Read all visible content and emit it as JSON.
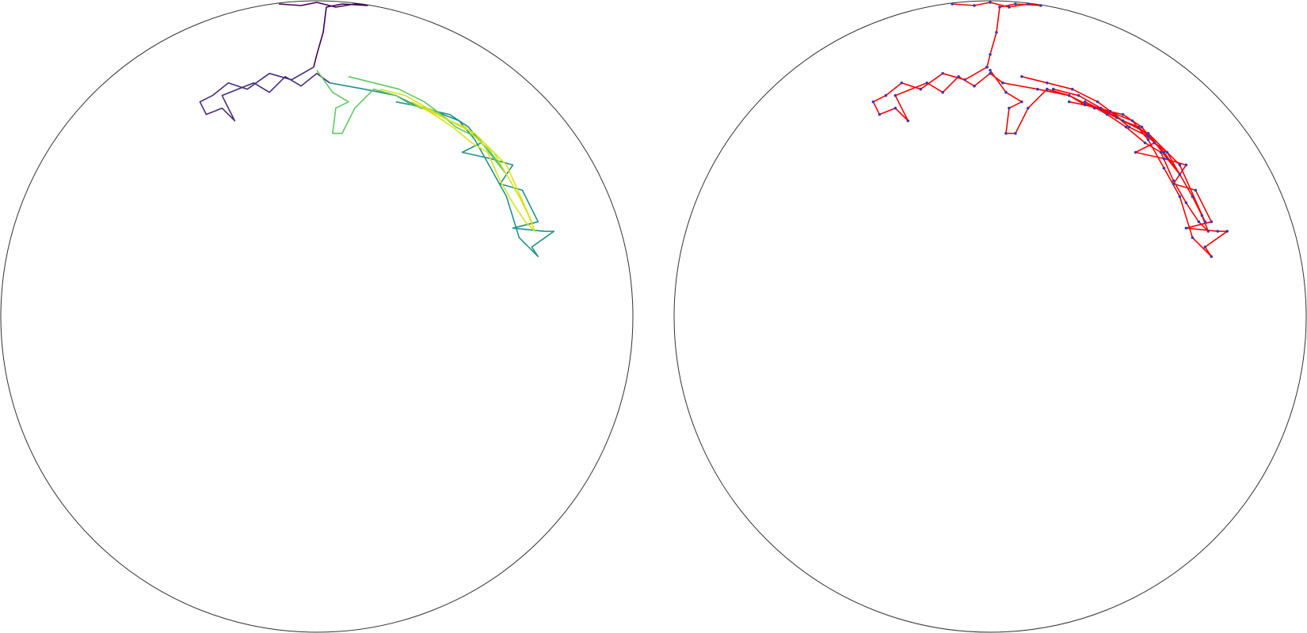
{
  "chart_data": [
    {
      "type": "line",
      "xlim": [
        -1,
        1
      ],
      "ylim": [
        -1,
        1
      ],
      "markers": false,
      "series": [
        {
          "color": "#440154",
          "x": [
            -0.12,
            -0.05,
            0.0,
            0.06,
            0.12,
            0.16,
            0.08,
            0.03,
            0.02,
            0.0,
            -0.01
          ],
          "y": [
            0.99,
            0.985,
            0.995,
            0.98,
            0.99,
            0.985,
            0.99,
            0.98,
            0.9,
            0.83,
            0.79
          ]
        },
        {
          "color": "#472d7b",
          "x": [
            -0.01,
            -0.08,
            -0.15,
            -0.22,
            -0.28,
            -0.33,
            -0.37,
            -0.35,
            -0.3,
            -0.26,
            -0.3,
            -0.2,
            -0.15,
            -0.1,
            -0.05,
            0.0,
            0.04
          ],
          "y": [
            0.79,
            0.75,
            0.77,
            0.72,
            0.74,
            0.7,
            0.68,
            0.64,
            0.66,
            0.62,
            0.7,
            0.74,
            0.71,
            0.76,
            0.73,
            0.77,
            0.74
          ]
        },
        {
          "color": "#21918c",
          "x": [
            0.04,
            0.15,
            0.25,
            0.33,
            0.42,
            0.48,
            0.52,
            0.46,
            0.55,
            0.62,
            0.58,
            0.65,
            0.7,
            0.62,
            0.72,
            0.75,
            0.68,
            0.7,
            0.64,
            0.6,
            0.55,
            0.5,
            0.45,
            0.35,
            0.25
          ],
          "y": [
            0.74,
            0.72,
            0.7,
            0.66,
            0.64,
            0.6,
            0.55,
            0.52,
            0.5,
            0.48,
            0.42,
            0.4,
            0.3,
            0.28,
            0.27,
            0.27,
            0.22,
            0.19,
            0.25,
            0.38,
            0.47,
            0.56,
            0.62,
            0.66,
            0.68
          ]
        },
        {
          "color": "#5ec962",
          "x": [
            0.0,
            0.05,
            0.1,
            0.06,
            0.05,
            0.08,
            0.12,
            0.18,
            0.25,
            0.3,
            0.38,
            0.44,
            0.5,
            0.55,
            0.6,
            0.56,
            0.5,
            0.42,
            0.34,
            0.26,
            0.18,
            0.1
          ],
          "y": [
            0.78,
            0.71,
            0.68,
            0.66,
            0.58,
            0.58,
            0.66,
            0.72,
            0.7,
            0.67,
            0.65,
            0.6,
            0.57,
            0.52,
            0.45,
            0.5,
            0.58,
            0.62,
            0.68,
            0.72,
            0.74,
            0.76
          ]
        },
        {
          "color": "#d8e219",
          "x": [
            0.2,
            0.28,
            0.35,
            0.42,
            0.47,
            0.52,
            0.56,
            0.6,
            0.64,
            0.67,
            0.69,
            0.66,
            0.62,
            0.58,
            0.54,
            0.49,
            0.43,
            0.37,
            0.3,
            0.4,
            0.5,
            0.6,
            0.68
          ],
          "y": [
            0.72,
            0.7,
            0.66,
            0.62,
            0.6,
            0.55,
            0.52,
            0.45,
            0.38,
            0.32,
            0.27,
            0.3,
            0.36,
            0.43,
            0.52,
            0.55,
            0.6,
            0.64,
            0.68,
            0.63,
            0.58,
            0.48,
            0.3
          ]
        }
      ]
    },
    {
      "type": "line",
      "xlim": [
        -1,
        1
      ],
      "ylim": [
        -1,
        1
      ],
      "markers": true,
      "marker_color": "#3a3ab0",
      "series": [
        {
          "color": "#ff0000",
          "x": [
            -0.12,
            -0.05,
            0.0,
            0.06,
            0.12,
            0.16,
            0.08,
            0.03,
            0.02,
            0.0,
            -0.01
          ],
          "y": [
            0.99,
            0.985,
            0.995,
            0.98,
            0.99,
            0.985,
            0.99,
            0.98,
            0.9,
            0.83,
            0.79
          ]
        },
        {
          "color": "#ff0000",
          "x": [
            -0.01,
            -0.08,
            -0.15,
            -0.22,
            -0.28,
            -0.33,
            -0.37,
            -0.35,
            -0.3,
            -0.26,
            -0.3,
            -0.2,
            -0.15,
            -0.1,
            -0.05,
            0.0,
            0.04
          ],
          "y": [
            0.79,
            0.75,
            0.77,
            0.72,
            0.74,
            0.7,
            0.68,
            0.64,
            0.66,
            0.62,
            0.7,
            0.74,
            0.71,
            0.76,
            0.73,
            0.77,
            0.74
          ]
        },
        {
          "color": "#ff0000",
          "x": [
            0.04,
            0.15,
            0.25,
            0.33,
            0.42,
            0.48,
            0.52,
            0.46,
            0.55,
            0.62,
            0.58,
            0.65,
            0.7,
            0.62,
            0.72,
            0.75,
            0.68,
            0.7,
            0.64,
            0.6,
            0.55,
            0.5,
            0.45,
            0.35,
            0.25
          ],
          "y": [
            0.74,
            0.72,
            0.7,
            0.66,
            0.64,
            0.6,
            0.55,
            0.52,
            0.5,
            0.48,
            0.42,
            0.4,
            0.3,
            0.28,
            0.27,
            0.27,
            0.22,
            0.19,
            0.25,
            0.38,
            0.47,
            0.56,
            0.62,
            0.66,
            0.68
          ]
        },
        {
          "color": "#ff0000",
          "x": [
            0.0,
            0.05,
            0.1,
            0.06,
            0.05,
            0.08,
            0.12,
            0.18,
            0.25,
            0.3,
            0.38,
            0.44,
            0.5,
            0.55,
            0.6,
            0.56,
            0.5,
            0.42,
            0.34,
            0.26,
            0.18,
            0.1
          ],
          "y": [
            0.78,
            0.71,
            0.68,
            0.66,
            0.58,
            0.58,
            0.66,
            0.72,
            0.7,
            0.67,
            0.65,
            0.6,
            0.57,
            0.52,
            0.45,
            0.5,
            0.58,
            0.62,
            0.68,
            0.72,
            0.74,
            0.76
          ]
        },
        {
          "color": "#ff0000",
          "x": [
            0.2,
            0.28,
            0.35,
            0.42,
            0.47,
            0.52,
            0.56,
            0.6,
            0.64,
            0.67,
            0.69,
            0.66,
            0.62,
            0.58,
            0.54,
            0.49,
            0.43,
            0.37,
            0.3,
            0.4,
            0.5,
            0.6,
            0.68
          ],
          "y": [
            0.72,
            0.7,
            0.66,
            0.62,
            0.6,
            0.55,
            0.52,
            0.45,
            0.38,
            0.32,
            0.27,
            0.3,
            0.36,
            0.43,
            0.52,
            0.55,
            0.6,
            0.64,
            0.68,
            0.63,
            0.58,
            0.48,
            0.3
          ]
        }
      ]
    }
  ]
}
